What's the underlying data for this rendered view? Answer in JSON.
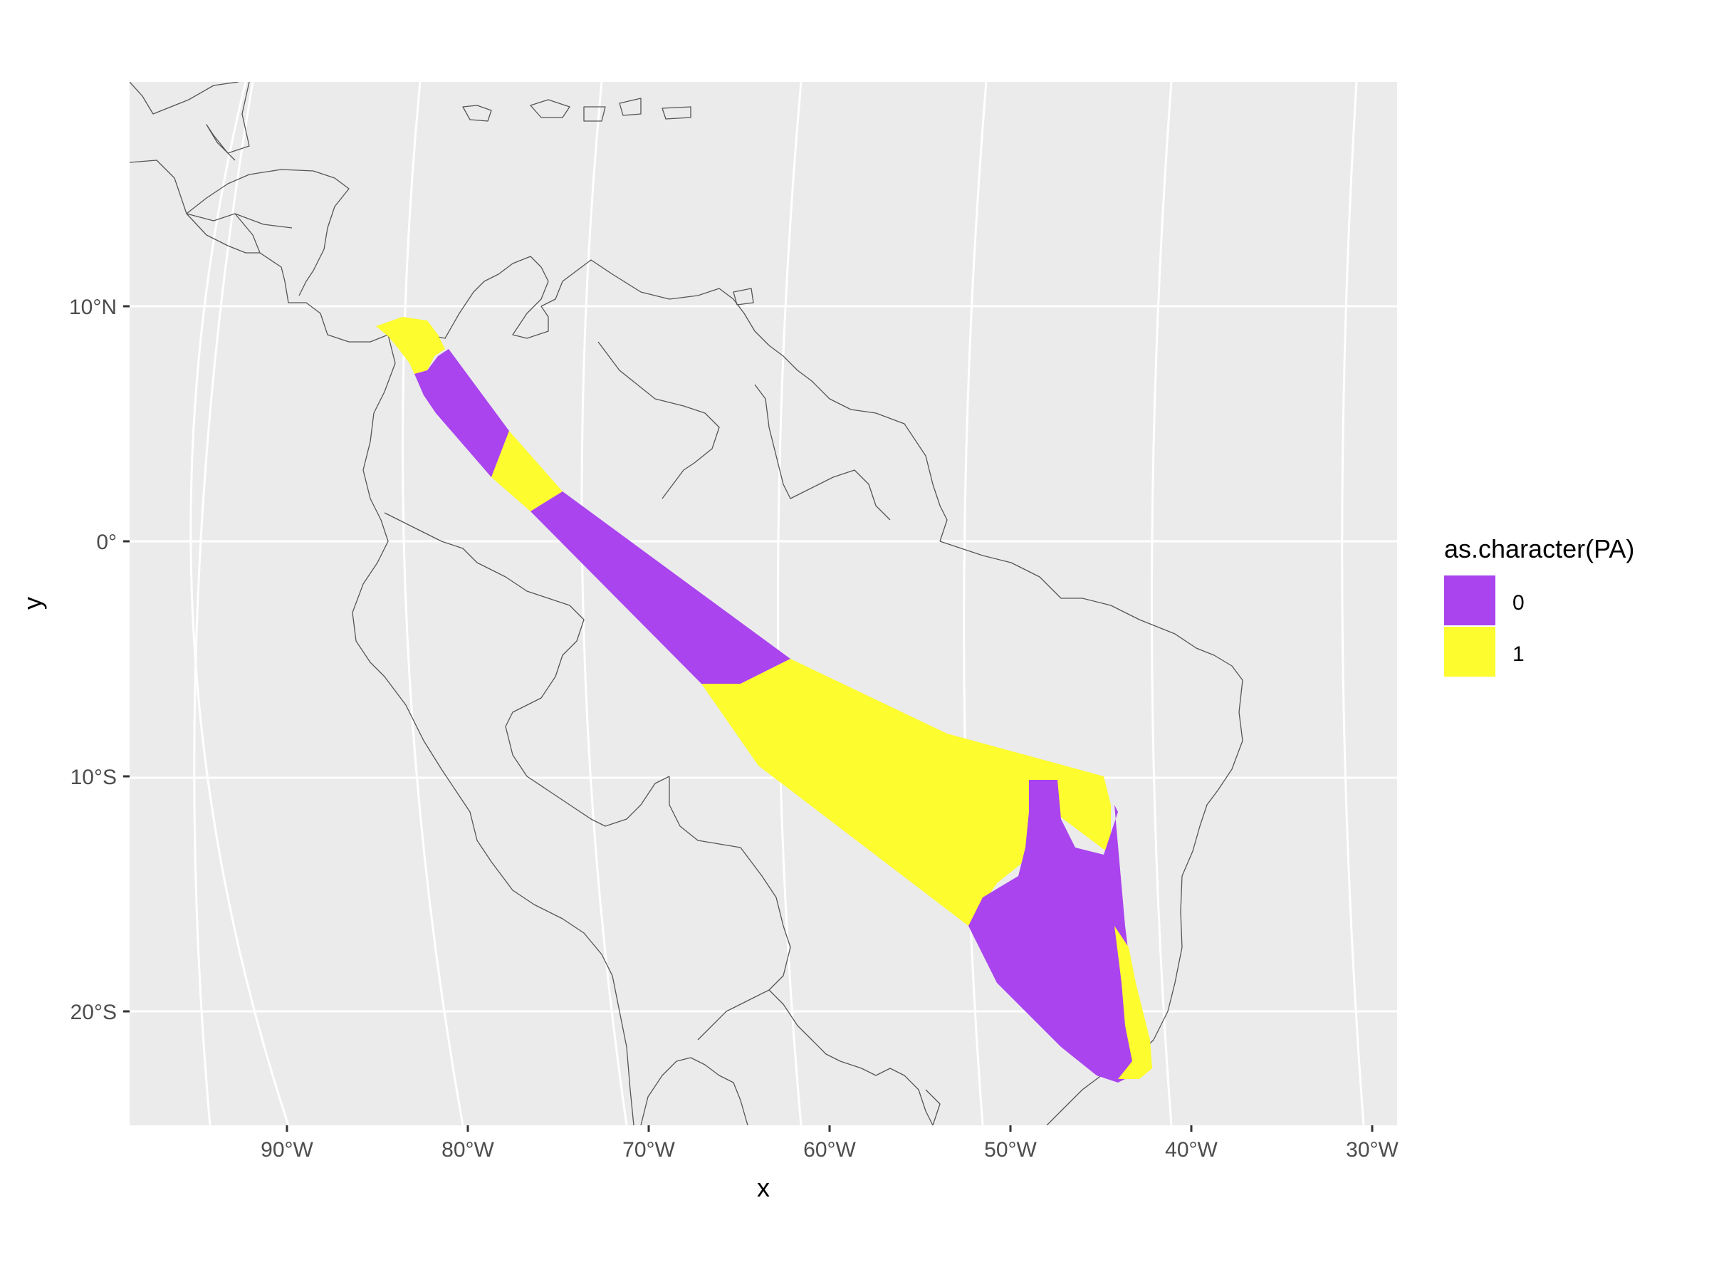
{
  "axes": {
    "x_title": "x",
    "y_title": "y",
    "lon_ticks": [
      {
        "value": -90,
        "label": "90°W"
      },
      {
        "value": -80,
        "label": "80°W"
      },
      {
        "value": -70,
        "label": "70°W"
      },
      {
        "value": -60,
        "label": "60°W"
      },
      {
        "value": -50,
        "label": "50°W"
      },
      {
        "value": -40,
        "label": "40°W"
      },
      {
        "value": -30,
        "label": "30°W"
      }
    ],
    "lat_ticks": [
      {
        "value": 10,
        "label": "10°N"
      },
      {
        "value": 0,
        "label": "0°"
      },
      {
        "value": -10,
        "label": "10°S"
      },
      {
        "value": -20,
        "label": "20°S"
      }
    ]
  },
  "legend": {
    "title": "as.character(PA)",
    "items": [
      {
        "label": "0",
        "color": "#A944EE"
      },
      {
        "label": "1",
        "color": "#FCFC2E"
      }
    ]
  },
  "colors": {
    "panel_background": "#EBEBEB",
    "gridline": "#FFFFFF",
    "country_border": "#555555",
    "absence": "#A944EE",
    "presence": "#FCFC2E"
  },
  "chart_data": {
    "type": "map",
    "region": "Central and South America",
    "fill_variable": "as.character(PA)",
    "categories": [
      "0",
      "1"
    ],
    "lon_range": [
      -98,
      -29
    ],
    "lat_range": [
      -25,
      20
    ],
    "grid": true,
    "legend_position": "right",
    "transect_segments": [
      {
        "value": "1",
        "lon_range": [
          -85.5,
          -80.5
        ],
        "lat_range": [
          9.5,
          7.5
        ]
      },
      {
        "value": "0",
        "lon_range": [
          -80.5,
          -77.5
        ],
        "lat_range": [
          7.5,
          3
        ]
      },
      {
        "value": "1",
        "lon_range": [
          -77.5,
          -75
        ],
        "lat_range": [
          3,
          1
        ]
      },
      {
        "value": "0",
        "lon_range": [
          -75,
          -66
        ],
        "lat_range": [
          1,
          -6
        ]
      },
      {
        "value": "1",
        "lon_range": [
          -66,
          -45
        ],
        "lat_range": [
          -6,
          -16
        ]
      },
      {
        "value": "0",
        "lon_range": [
          -53,
          -45
        ],
        "lat_range": [
          -10,
          -23
        ]
      }
    ]
  }
}
